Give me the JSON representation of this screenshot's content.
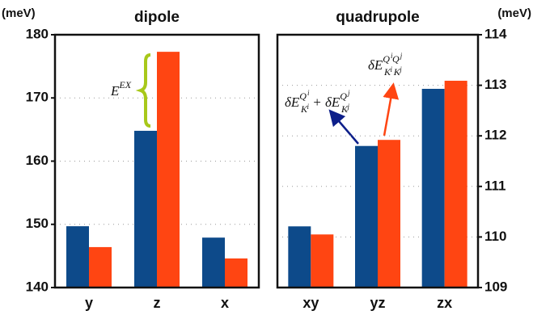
{
  "chart_data": [
    {
      "type": "bar",
      "title": "dipole",
      "y_unit": "(meV)",
      "axis_side": "left",
      "categories": [
        "y",
        "z",
        "x"
      ],
      "series": [
        {
          "color": "#0d4a8a",
          "values": [
            149.7,
            164.8,
            147.9
          ]
        },
        {
          "color": "#ff4512",
          "values": [
            146.4,
            177.3,
            144.6
          ]
        }
      ],
      "ylim": [
        140,
        180
      ],
      "yticks": [
        140,
        150,
        160,
        170,
        180
      ],
      "grid": true,
      "annotations": [
        {
          "parts": [
            {
              "base": "E"
            },
            {
              "sup": "EX"
            }
          ]
        }
      ]
    },
    {
      "type": "bar",
      "title": "quadrupole",
      "y_unit": "(meV)",
      "axis_side": "right",
      "categories": [
        "xy",
        "yz",
        "zx"
      ],
      "series": [
        {
          "color": "#0d4a8a",
          "values": [
            110.21,
            111.8,
            112.93
          ]
        },
        {
          "color": "#ff4512",
          "values": [
            110.05,
            111.92,
            113.09
          ]
        }
      ],
      "ylim": [
        109,
        114
      ],
      "yticks": [
        109,
        110,
        111,
        112,
        113,
        114
      ],
      "grid": true,
      "annotations": [
        {
          "parts": [
            {
              "base": "δE"
            },
            {
              "sup": "Q",
              "sub": "K"
            },
            {
              "supsub": "i"
            },
            {
              "base": " + δE"
            },
            {
              "sup": "Q",
              "sub": "K"
            },
            {
              "supsub": "j"
            }
          ]
        },
        {
          "parts": [
            {
              "base": "δE"
            },
            {
              "sup": "Q",
              "sub": "K"
            },
            {
              "supsub": "i"
            },
            {
              "sup": "Q",
              "sub": "K"
            },
            {
              "supsub": "j"
            }
          ]
        }
      ]
    }
  ]
}
